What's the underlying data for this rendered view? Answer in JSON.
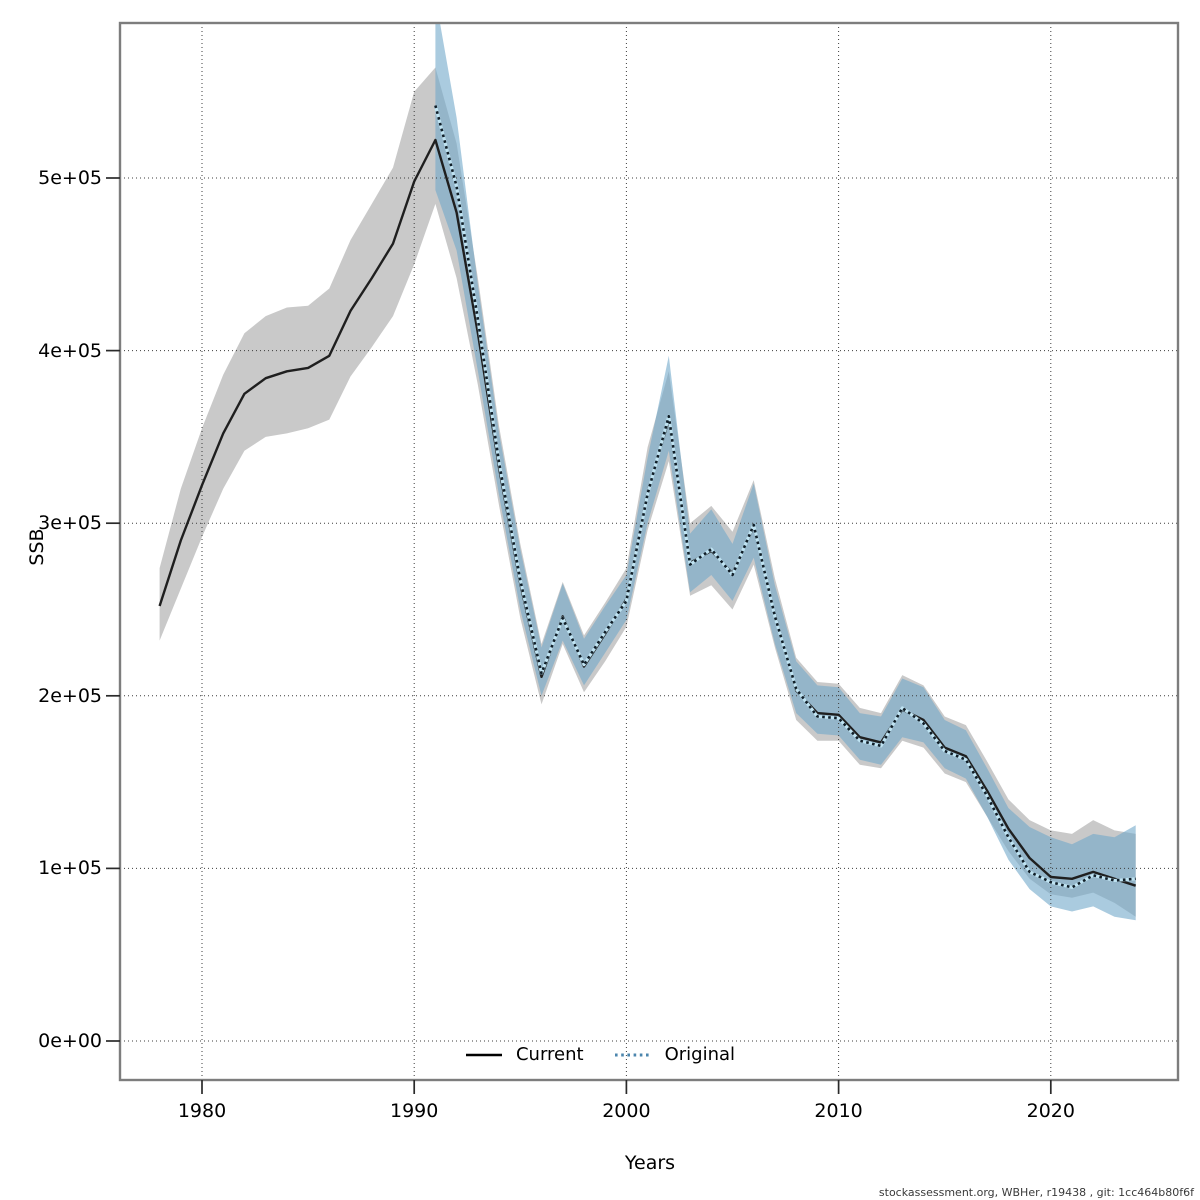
{
  "watermark": "stockassessment.org, WBHer, r19438 , git: 1cc464b80f6f",
  "axes": {
    "x_label": "Years",
    "y_label": "SSB",
    "x_ticks": [
      1980,
      1990,
      2000,
      2010,
      2020
    ],
    "y_ticks": [
      {
        "label": "0e+00",
        "value": 0
      },
      {
        "label": "1e+05",
        "value": 100000
      },
      {
        "label": "2e+05",
        "value": 200000
      },
      {
        "label": "3e+05",
        "value": 300000
      },
      {
        "label": "4e+05",
        "value": 400000
      },
      {
        "label": "5e+05",
        "value": 500000
      }
    ]
  },
  "legend": [
    {
      "label": "Current",
      "line": "solid",
      "color": "#000000"
    },
    {
      "label": "Original",
      "line": "dotted",
      "color": "#4c86ad"
    }
  ],
  "colors": {
    "current_band": "#c9c9c9",
    "original_band": "rgba(114,168,201,0.60)",
    "current_line": "#1f1f1f",
    "original_line_dot": "#101e28",
    "original_line_under": "#bfe3f2",
    "grid": "#3c3c3c",
    "border": "#7d7d7d",
    "tick": "#2a2a2a"
  },
  "chart_data": {
    "type": "line",
    "title": "",
    "xlabel": "Years",
    "ylabel": "SSB",
    "xlim": [
      1976.2,
      2025.9
    ],
    "ylim": [
      0,
      590000
    ],
    "grid": "dotted",
    "legend_position": "bottom-center",
    "series": [
      {
        "name": "Current",
        "style": "solid-black-line-with-gray-confidence-band",
        "x": [
          1978,
          1979,
          1980,
          1981,
          1982,
          1983,
          1984,
          1985,
          1986,
          1987,
          1988,
          1989,
          1990,
          1991,
          1992,
          1993,
          1994,
          1995,
          1996,
          1997,
          1998,
          1999,
          2000,
          2001,
          2002,
          2003,
          2004,
          2005,
          2006,
          2007,
          2008,
          2009,
          2010,
          2011,
          2012,
          2013,
          2014,
          2015,
          2016,
          2017,
          2018,
          2019,
          2020,
          2021,
          2022,
          2023,
          2024
        ],
        "values": [
          252000,
          290000,
          322000,
          352000,
          375000,
          384000,
          388000,
          390000,
          397000,
          423000,
          442000,
          462000,
          498000,
          522000,
          480000,
          410000,
          332000,
          265000,
          211000,
          246000,
          217000,
          236000,
          256000,
          318000,
          360000,
          277000,
          284000,
          271000,
          298000,
          247000,
          203000,
          190000,
          189000,
          176000,
          173000,
          192000,
          186000,
          170000,
          165000,
          145000,
          123000,
          106000,
          95000,
          94000,
          98000,
          94000,
          90000
        ],
        "lower": [
          232000,
          262000,
          292000,
          320000,
          342000,
          350000,
          352000,
          355000,
          360000,
          385000,
          402000,
          420000,
          450000,
          485000,
          442000,
          380000,
          310000,
          245000,
          195000,
          230000,
          202000,
          220000,
          240000,
          296000,
          336000,
          258000,
          264000,
          250000,
          276000,
          228000,
          186000,
          174000,
          174000,
          160000,
          158000,
          174000,
          170000,
          155000,
          150000,
          130000,
          110000,
          94000,
          85000,
          83000,
          86000,
          80000,
          72000
        ],
        "upper": [
          274000,
          320000,
          355000,
          386000,
          410000,
          420000,
          425000,
          426000,
          436000,
          464000,
          485000,
          506000,
          550000,
          564000,
          520000,
          442000,
          356000,
          288000,
          230000,
          266000,
          235000,
          254000,
          274000,
          344000,
          388000,
          300000,
          310000,
          295000,
          325000,
          268000,
          222000,
          208000,
          207000,
          193000,
          190000,
          212000,
          206000,
          188000,
          183000,
          162000,
          140000,
          128000,
          122000,
          120000,
          128000,
          122000,
          120000
        ]
      },
      {
        "name": "Original",
        "style": "dark-dotted-line-with-blue-confidence-band",
        "x": [
          1991,
          1992,
          1993,
          1994,
          1995,
          1996,
          1997,
          1998,
          1999,
          2000,
          2001,
          2002,
          2003,
          2004,
          2005,
          2006,
          2007,
          2008,
          2009,
          2010,
          2011,
          2012,
          2013,
          2014,
          2015,
          2016,
          2017,
          2018,
          2019,
          2020,
          2021,
          2022,
          2023,
          2024
        ],
        "values": [
          542000,
          495000,
          418000,
          335000,
          267000,
          213000,
          245000,
          218000,
          237000,
          255000,
          317000,
          362000,
          276000,
          285000,
          270000,
          299000,
          246000,
          204000,
          188000,
          187000,
          174000,
          171000,
          193000,
          184000,
          168000,
          163000,
          142000,
          118000,
          98000,
          92000,
          89000,
          96000,
          93000,
          94000
        ],
        "lower": [
          493000,
          458000,
          388000,
          316000,
          250000,
          200000,
          232000,
          206000,
          225000,
          244000,
          300000,
          342000,
          260000,
          270000,
          255000,
          280000,
          230000,
          190000,
          178000,
          177000,
          163000,
          160000,
          176000,
          173000,
          158000,
          152000,
          130000,
          105000,
          88000,
          78000,
          75000,
          78000,
          72000,
          70000
        ],
        "upper": [
          605000,
          535000,
          438000,
          352000,
          285000,
          228000,
          265000,
          233000,
          252000,
          270000,
          338000,
          397000,
          294000,
          308000,
          288000,
          323000,
          264000,
          220000,
          206000,
          205000,
          190000,
          188000,
          210000,
          205000,
          186000,
          180000,
          158000,
          135000,
          124000,
          118000,
          114000,
          120000,
          118000,
          125000
        ]
      }
    ]
  }
}
